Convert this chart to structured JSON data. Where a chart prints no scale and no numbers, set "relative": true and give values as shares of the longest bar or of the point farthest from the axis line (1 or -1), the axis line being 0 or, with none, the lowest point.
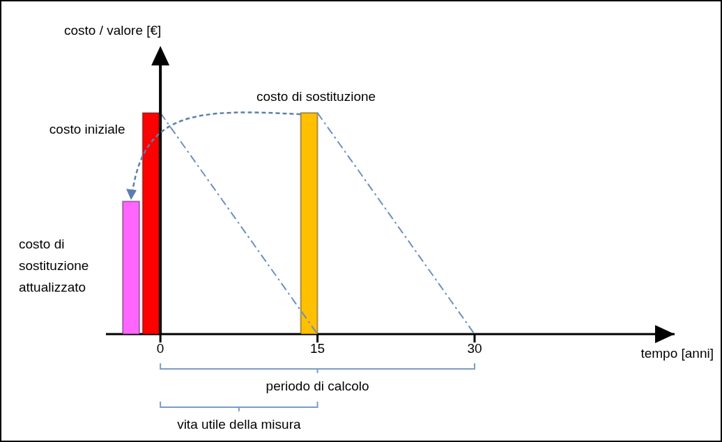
{
  "chart_data": {
    "type": "bar",
    "relative": true,
    "xlabel": "tempo [anni]",
    "xlim": [
      -5.2,
      49.1
    ],
    "xticks": [
      0,
      15,
      30
    ],
    "series": [
      {
        "type": "bar",
        "x": [
          -2.8,
          -0.9,
          14.2
        ],
        "values": [
          0.6,
          1,
          1
        ],
        "colors": [
          "#ff66ff",
          "#ff0000",
          "#ffc000"
        ]
      },
      {
        "type": "line",
        "x": [
          0,
          15
        ],
        "values": [
          1,
          0
        ],
        "color": "#6f8fbf",
        "line_style": "dashed",
        "marker": "none"
      },
      {
        "type": "line",
        "x": [
          15,
          30
        ],
        "values": [
          1,
          0
        ],
        "color": "#6f8fbf",
        "line_style": "dashed",
        "marker": "none"
      }
    ],
    "annotations": [
      "costo / valore [€]",
      {
        "text": "costo iniziale",
        "x": -0.9,
        "y": 1
      },
      {
        "text": "costo di sostituzione",
        "x": 14.2,
        "y": 1
      },
      "costo di sostituzione attualizzato",
      "periodo di calcolo",
      "vita utile della misura"
    ]
  }
}
